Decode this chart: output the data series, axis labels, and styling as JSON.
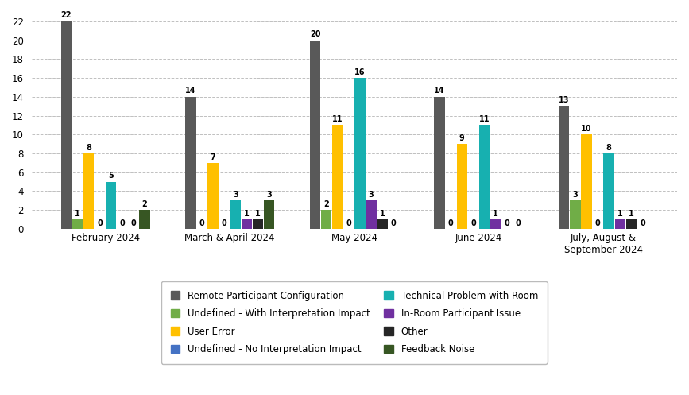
{
  "categories": [
    "February 2024",
    "March & April 2024",
    "May 2024",
    "June 2024",
    "July, August &\nSeptember 2024"
  ],
  "series": {
    "Remote Participant Configuration": [
      22,
      14,
      20,
      14,
      13
    ],
    "Undefined - With Interpretation Impact": [
      1,
      0,
      2,
      0,
      3
    ],
    "User Error": [
      8,
      7,
      11,
      9,
      10
    ],
    "Undefined - No Interpretation Impact": [
      0,
      0,
      0,
      0,
      0
    ],
    "Technical Problem with Room": [
      5,
      3,
      16,
      11,
      8
    ],
    "In-Room Participant Issue": [
      0,
      1,
      3,
      1,
      1
    ],
    "Other": [
      0,
      1,
      1,
      0,
      1
    ],
    "Feedback Noise": [
      2,
      3,
      0,
      0,
      0
    ]
  },
  "colors": {
    "Remote Participant Configuration": "#595959",
    "Undefined - With Interpretation Impact": "#70ad47",
    "User Error": "#ffc000",
    "Undefined - No Interpretation Impact": "#4472c4",
    "Technical Problem with Room": "#17b0b0",
    "In-Room Participant Issue": "#7030a0",
    "Other": "#262626",
    "Feedback Noise": "#375623"
  },
  "legend_order_left": [
    "Remote Participant Configuration",
    "User Error",
    "Technical Problem with Room",
    "Other"
  ],
  "legend_order_right": [
    "Undefined - With Interpretation Impact",
    "Undefined - No Interpretation Impact",
    "In-Room Participant Issue",
    "Feedback Noise"
  ],
  "ylim": [
    0,
    23
  ],
  "yticks": [
    0,
    2,
    4,
    6,
    8,
    10,
    12,
    14,
    16,
    18,
    20,
    22
  ],
  "figsize": [
    8.67,
    4.97
  ],
  "dpi": 100,
  "background_color": "#ffffff"
}
